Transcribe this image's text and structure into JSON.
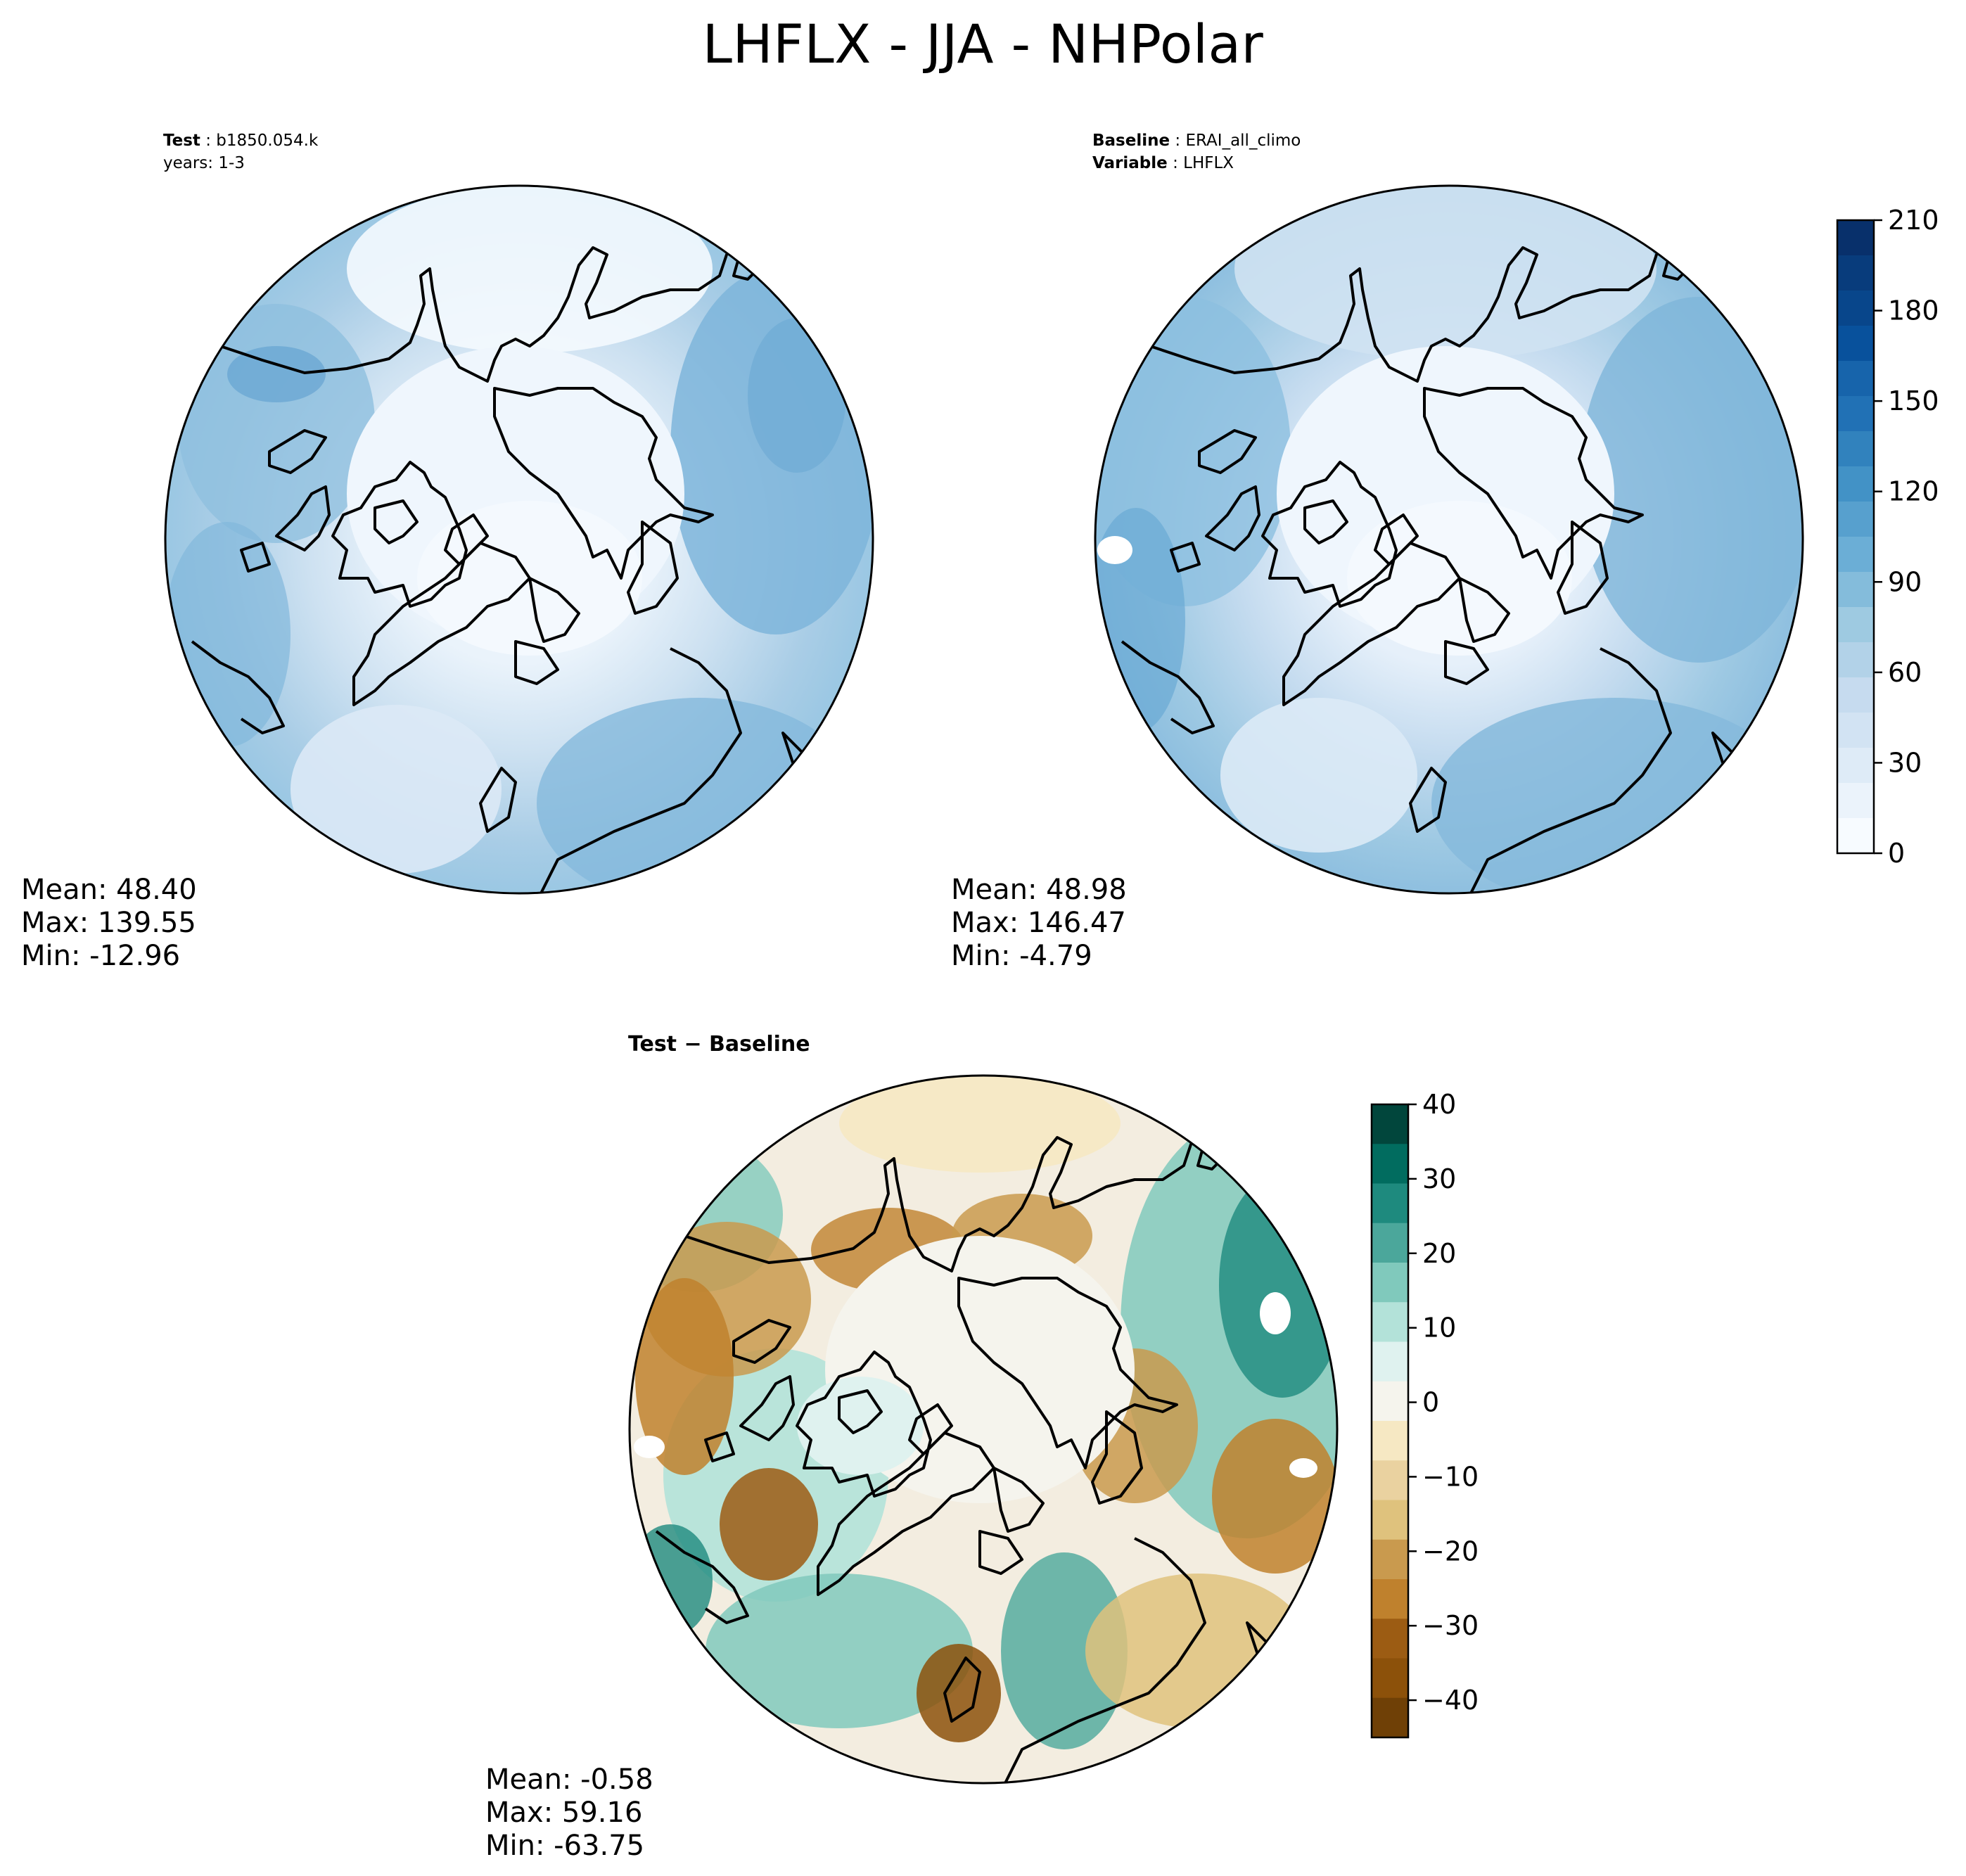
{
  "title": "LHFLX - JJA - NHPolar",
  "panels": {
    "test": {
      "line1_key": "Test",
      "line1_value": "b1850.054.k",
      "line2": "years: 1-3",
      "stats": {
        "mean": "Mean: 48.40",
        "max": "Max: 139.55",
        "min": "Min: -12.96"
      }
    },
    "baseline": {
      "line1_key": "Baseline",
      "line1_value": "ERAI_all_climo",
      "line2_key": "Variable",
      "line2_value": "LHFLX",
      "stats": {
        "mean": "Mean: 48.98",
        "max": "Max: 146.47",
        "min": "Min: -4.79"
      }
    },
    "diff": {
      "label": "Test − Baseline",
      "stats": {
        "mean": "Mean: -0.58",
        "max": "Max: 59.16",
        "min": "Min: -63.75"
      }
    }
  },
  "chart_data": [
    {
      "type": "heatmap",
      "projection": "north polar stereographic",
      "field": "LHFLX",
      "season": "JJA",
      "case": "b1850.054.k",
      "years": "1-3",
      "mean": 48.4,
      "max": 139.55,
      "min": -12.96,
      "colorbar": {
        "range": [
          0,
          210
        ],
        "ticks": [
          0,
          30,
          60,
          90,
          120,
          150,
          180,
          210
        ],
        "levels": 21,
        "colors": "Blues"
      }
    },
    {
      "type": "heatmap",
      "projection": "north polar stereographic",
      "field": "LHFLX",
      "season": "JJA",
      "case": "ERAI_all_climo",
      "mean": 48.98,
      "max": 146.47,
      "min": -4.79,
      "colorbar": {
        "range": [
          0,
          210
        ],
        "ticks": [
          0,
          30,
          60,
          90,
          120,
          150,
          180,
          210
        ],
        "levels": 21,
        "colors": "Blues"
      }
    },
    {
      "type": "heatmap",
      "projection": "north polar stereographic",
      "field": "LHFLX difference",
      "mean": -0.58,
      "max": 59.16,
      "min": -63.75,
      "colorbar": {
        "range": [
          -45,
          40
        ],
        "ticks": [
          -40,
          -30,
          -20,
          -10,
          0,
          10,
          20,
          30,
          40
        ],
        "colors": "BrBG"
      }
    }
  ],
  "colorbar_top": {
    "ticks": [
      "0",
      "30",
      "60",
      "90",
      "120",
      "150",
      "180",
      "210"
    ],
    "colors": [
      "#f7fbff",
      "#ebf3fb",
      "#deebf7",
      "#d2e3f3",
      "#c6dbef",
      "#b2d2e8",
      "#9ecae1",
      "#84bcdb",
      "#6baed6",
      "#57a0ce",
      "#4292c6",
      "#3182bd",
      "#2171b5",
      "#1764ab",
      "#08519c",
      "#08468b",
      "#083c7c",
      "#08306b"
    ]
  },
  "colorbar_diff": {
    "ticks": [
      "40",
      "30",
      "20",
      "10",
      "0",
      "−10",
      "−20",
      "−30",
      "−40"
    ],
    "colors": [
      "#01463c",
      "#016c5f",
      "#1e8a7e",
      "#4ba79b",
      "#80c9bc",
      "#b3e2d9",
      "#dff2ef",
      "#f5f4ed",
      "#f6e8c3",
      "#ead2a0",
      "#dfc27d",
      "#c99a4e",
      "#bf812d",
      "#9c5c13",
      "#8c510a",
      "#6f4006"
    ]
  }
}
